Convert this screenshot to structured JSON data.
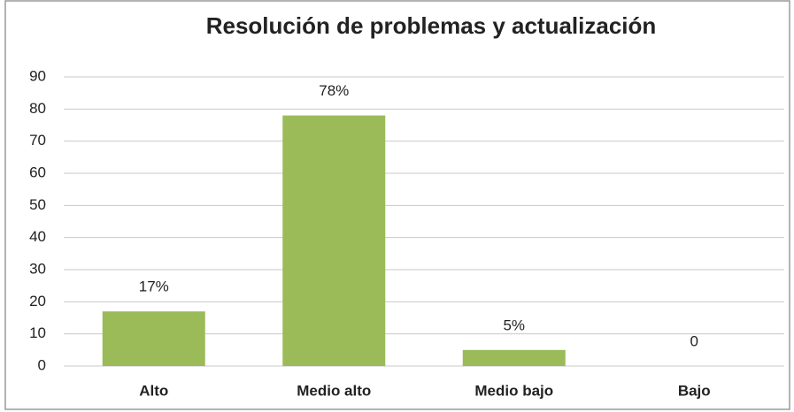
{
  "chart_data": {
    "type": "bar",
    "title": "Resolución de problemas y actualización",
    "categories": [
      "Alto",
      "Medio alto",
      "Medio bajo",
      "Bajo"
    ],
    "values": [
      17,
      78,
      5,
      0
    ],
    "value_labels": [
      "17%",
      "78%",
      "5%",
      "0"
    ],
    "color": "#9bbb59",
    "ylim": [
      0,
      90
    ],
    "yticks": [
      0,
      10,
      20,
      30,
      40,
      50,
      60,
      70,
      80,
      90
    ],
    "grid": true
  }
}
